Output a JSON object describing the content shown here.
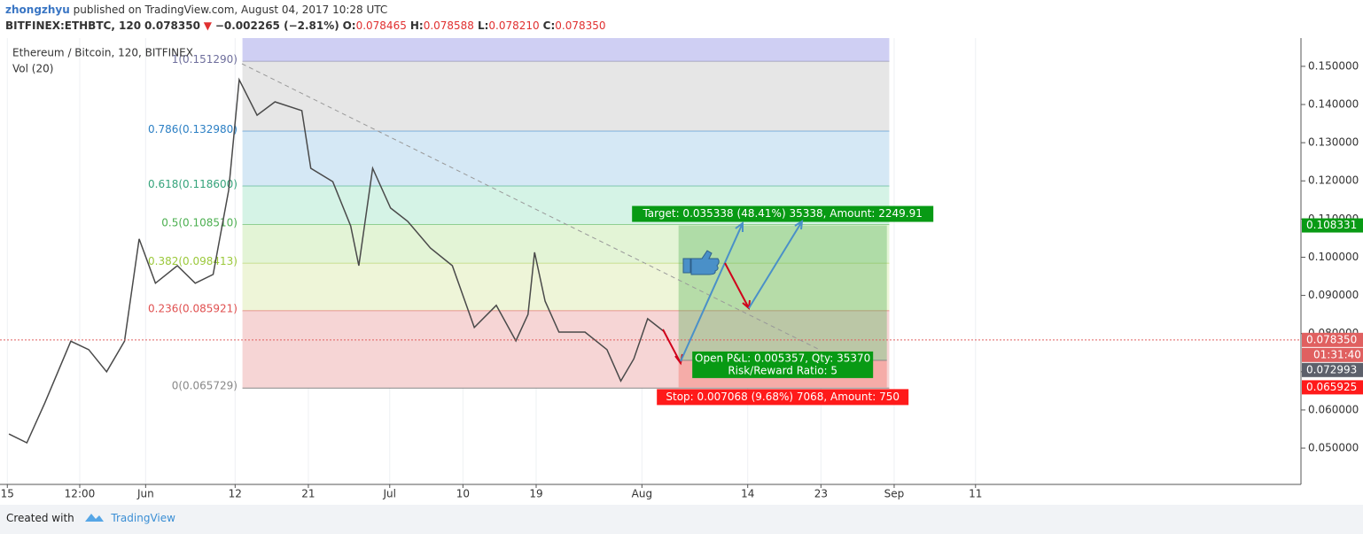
{
  "header": {
    "author": "zhongzhyu",
    "published": " published on TradingView.com, August 04, 2017 10:28 UTC",
    "symbol": "BITFINEX:ETHBTC, 120",
    "last": "0.078350",
    "direction": "▼",
    "change": "−0.002265 (−2.81%)",
    "ohlc": [
      {
        "key": "O:",
        "value": "0.078465"
      },
      {
        "key": "H:",
        "value": "0.078588"
      },
      {
        "key": "L:",
        "value": "0.078210"
      },
      {
        "key": "C:",
        "value": "0.078350"
      }
    ]
  },
  "chart_data": {
    "type": "line",
    "title": "Ethereum / Bitcoin, 120, BITFINEX",
    "indicator": "Vol (20)",
    "color": "#4a4a4a",
    "x": [
      0.2,
      2.4,
      4.6,
      7.8,
      10,
      12.2,
      14.4,
      16.2,
      18.2,
      20.9,
      23.1,
      25.3,
      27.2,
      28.5,
      30.7,
      32.9,
      36.2,
      37.3,
      40,
      42.2,
      43.2,
      44.9,
      47.1,
      49.2,
      52,
      54.7,
      57.4,
      60.1,
      62.5,
      64,
      64.8,
      66.1,
      67.8,
      71,
      73.7,
      75.4,
      77,
      78.7,
      80.8
    ],
    "values": [
      0.0537,
      0.0514,
      0.0618,
      0.078,
      0.0758,
      0.07,
      0.078,
      0.1048,
      0.0932,
      0.0978,
      0.0932,
      0.0955,
      0.1175,
      0.1465,
      0.1372,
      0.1407,
      0.1384,
      0.1233,
      0.1198,
      0.1082,
      0.0978,
      0.1233,
      0.1129,
      0.1094,
      0.1024,
      0.0978,
      0.0816,
      0.0874,
      0.0781,
      0.085,
      0.1013,
      0.0885,
      0.0804,
      0.0804,
      0.0758,
      0.0676,
      0.0734,
      0.0839,
      0.0804
    ],
    "xlim": [
      -0.9,
      159
    ],
    "xticks": [
      {
        "value": 0,
        "label": "15"
      },
      {
        "value": 8.9,
        "label": "12:00"
      },
      {
        "value": 17,
        "label": "Jun"
      },
      {
        "value": 28,
        "label": "12"
      },
      {
        "value": 37,
        "label": "21"
      },
      {
        "value": 47,
        "label": "Jul"
      },
      {
        "value": 56,
        "label": "10"
      },
      {
        "value": 65,
        "label": "19"
      },
      {
        "value": 78,
        "label": "Aug"
      },
      {
        "value": 91,
        "label": "14"
      },
      {
        "value": 100,
        "label": "23"
      },
      {
        "value": 109,
        "label": "Sep"
      },
      {
        "value": 119,
        "label": "11"
      }
    ],
    "ylim": [
      0.0405,
      0.1574
    ],
    "yticks": [
      {
        "value": 0.05,
        "label": "0.050000"
      },
      {
        "value": 0.06,
        "label": "0.060000"
      },
      {
        "value": 0.07,
        "label": "0.070000"
      },
      {
        "value": 0.08,
        "label": "0.080000"
      },
      {
        "value": 0.09,
        "label": "0.090000"
      },
      {
        "value": 0.1,
        "label": "0.100000"
      },
      {
        "value": 0.11,
        "label": "0.110000"
      },
      {
        "value": 0.12,
        "label": "0.120000"
      },
      {
        "value": 0.13,
        "label": "0.130000"
      },
      {
        "value": 0.14,
        "label": "0.140000"
      },
      {
        "value": 0.15,
        "label": "0.150000"
      }
    ],
    "grid": true,
    "fib": {
      "x": [
        28.9,
        108.4
      ],
      "levels": [
        {
          "price": 0.15129,
          "label": "1(0.151290)",
          "line": "#6e6e9c",
          "fill": "#cfcff3"
        },
        {
          "price": 0.13298,
          "label": "0.786(0.132980)",
          "line": "#2b7fc4",
          "fill": "#e6e6e6"
        },
        {
          "price": 0.1186,
          "label": "0.618(0.118600)",
          "line": "#34a37a",
          "fill": "#d5e8f5"
        },
        {
          "price": 0.10851,
          "label": "0.5(0.108510)",
          "line": "#4caf50",
          "fill": "#d5f3e6"
        },
        {
          "price": 0.098413,
          "label": "0.382(0.098413)",
          "line": "#9bc83a",
          "fill": "#e3f4d6"
        },
        {
          "price": 0.085921,
          "label": "0.236(0.085921)",
          "line": "#e05050",
          "fill": "#eef5d8"
        },
        {
          "price": 0.065729,
          "label": "0(0.065729)",
          "line": "#888888",
          "fill": "#f6d5d5"
        }
      ]
    },
    "position": {
      "x": [
        82.5,
        108.1
      ],
      "entry": 0.072993,
      "target": 0.108331,
      "stop": 0.065925,
      "target_label": "Target: 0.035338 (48.41%) 35338, Amount: 2249.91",
      "open_label": "Open P&L: 0.005357, Qty: 35370",
      "ratio_label": "Risk/Reward Ratio: 5",
      "stop_label": "Stop: 0.007068 (9.68%) 7068, Amount: 750"
    },
    "price_labels": [
      {
        "value": 0.108331,
        "label": "0.108331",
        "color": "#089a14"
      },
      {
        "value": 0.07835,
        "label": "0.078350",
        "color": "#e06060"
      },
      {
        "value": 0.072993,
        "label": "0.072993",
        "color": "#5d606b"
      },
      {
        "value": 0.065925,
        "label": "0.065925",
        "color": "#ff1a1a"
      }
    ],
    "countdown": "01:31:40"
  },
  "footer": {
    "created": "Created with",
    "brand": "TradingView"
  }
}
